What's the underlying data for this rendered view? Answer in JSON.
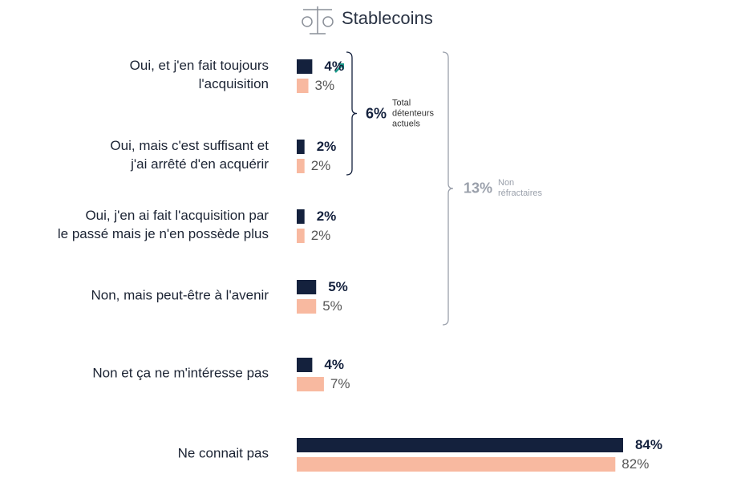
{
  "chart_data": {
    "type": "hbar",
    "title": "Stablecoins",
    "categories": [
      "Oui, et j'en fait toujours\nl'acquisition",
      "Oui, mais c'est suffisant et\nj'ai arrêté d'en acquérir",
      "Oui, j'en ai fait l'acquisition par\nle passé mais je n'en possède plus",
      "Non, mais peut-être à l'avenir",
      "Non et ça ne m'intéresse pas",
      "Ne connait pas"
    ],
    "series": [
      {
        "color": "#14213d",
        "values": [
          4,
          2,
          2,
          5,
          4,
          84
        ],
        "value_labels": [
          "4%",
          "2%",
          "2%",
          "5%",
          "4%",
          "84%"
        ]
      },
      {
        "color": "#f8b9a0",
        "values": [
          3,
          2,
          2,
          5,
          7,
          82
        ],
        "value_labels": [
          "3%",
          "2%",
          "2%",
          "5%",
          "7%",
          "82%"
        ]
      }
    ],
    "xlim": [
      0,
      100
    ],
    "annotations": [
      {
        "value": 6,
        "label": "6%",
        "text": "Total\ndétenteurs\nactuels",
        "color": "#14213d"
      },
      {
        "value": 13,
        "label": "13%",
        "text": "Non\nréfractaires",
        "color": "#9aa0ab"
      }
    ]
  }
}
